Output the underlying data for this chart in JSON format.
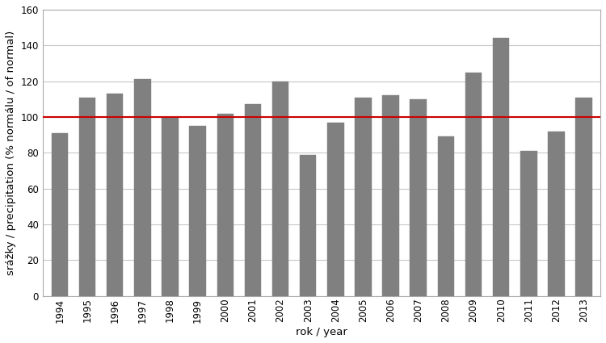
{
  "years": [
    1994,
    1995,
    1996,
    1997,
    1998,
    1999,
    2000,
    2001,
    2002,
    2003,
    2004,
    2005,
    2006,
    2007,
    2008,
    2009,
    2010,
    2011,
    2012,
    2013
  ],
  "values": [
    91,
    111,
    113,
    121,
    100,
    95,
    102,
    107,
    120,
    79,
    97,
    111,
    112,
    110,
    89,
    125,
    144,
    81,
    92,
    111
  ],
  "bar_color": "#808080",
  "reference_line_y": 100,
  "reference_line_color": "#cc0000",
  "ylabel": "srážky / precipitation (% normálu / of normal)",
  "xlabel": "rok / year",
  "ylim": [
    0,
    160
  ],
  "yticks": [
    0,
    20,
    40,
    60,
    80,
    100,
    120,
    140,
    160
  ],
  "background_color": "#ffffff",
  "grid_color": "#c8c8c8",
  "bar_edge_color": "#808080",
  "bar_width": 0.6,
  "spine_color": "#aaaaaa",
  "tick_label_fontsize": 8.5,
  "axis_label_fontsize": 9.5
}
